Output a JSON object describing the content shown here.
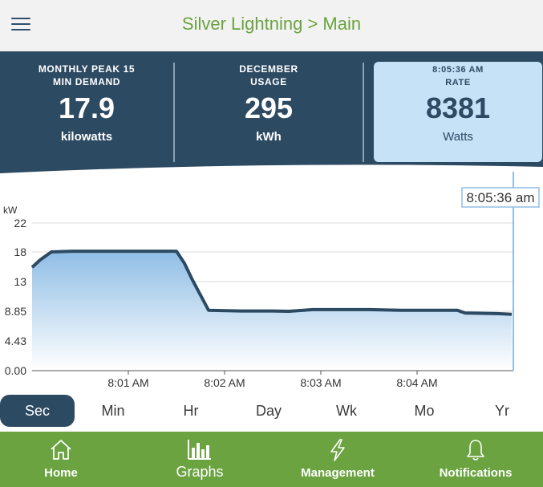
{
  "header": {
    "title": "Silver Lightning > Main"
  },
  "stats": [
    {
      "label_line1": "MONTHLY PEAK 15",
      "label_line2": "MIN DEMAND",
      "value": "17.9",
      "unit": "kilowatts"
    },
    {
      "label_line1": "DECEMBER",
      "label_line2": "USAGE",
      "value": "295",
      "unit": "kWh"
    },
    {
      "label_line1": "8:05:36 AM",
      "label_line2": "RATE",
      "value": "8381",
      "unit": "Watts"
    }
  ],
  "chart_data": {
    "type": "area",
    "ylabel": "kW",
    "y_ticks": [
      "22",
      "18",
      "13",
      "8.85",
      "4.43",
      "0.00"
    ],
    "y_tick_values": [
      22,
      17.7,
      13.3,
      8.85,
      4.43,
      0
    ],
    "ylim": [
      0,
      22
    ],
    "x_ticks": [
      "8:01 AM",
      "8:02 AM",
      "8:03 AM",
      "8:04 AM"
    ],
    "x_tick_seconds": [
      60,
      120,
      180,
      240
    ],
    "xlim_seconds": [
      0,
      300
    ],
    "cursor_label": "8:05:36 am",
    "grid": true,
    "series": [
      {
        "x_seconds": [
          0,
          5,
          12,
          25,
          50,
          75,
          90,
          95,
          100,
          110,
          130,
          150,
          160,
          175,
          200,
          210,
          230,
          250,
          265,
          270,
          290,
          299
        ],
        "values": [
          15.4,
          16.5,
          17.7,
          17.8,
          17.8,
          17.8,
          17.8,
          16.0,
          13.5,
          9.0,
          8.9,
          8.9,
          8.85,
          9.1,
          9.1,
          9.1,
          9.0,
          9.0,
          9.0,
          8.6,
          8.5,
          8.4
        ]
      }
    ],
    "colors": {
      "line": "#2d4a63",
      "fill_top": "#8fbde5",
      "fill_bottom": "#ffffff",
      "cursor": "#8fbde5"
    }
  },
  "time_tabs": [
    "Sec",
    "Min",
    "Hr",
    "Day",
    "Wk",
    "Mo",
    "Yr"
  ],
  "active_time_tab": "Sec",
  "nav": [
    {
      "label": "Home",
      "icon": "home-icon"
    },
    {
      "label": "Graphs",
      "icon": "graph-icon"
    },
    {
      "label": "Management",
      "icon": "lightning-icon"
    },
    {
      "label": "Notifications",
      "icon": "bell-icon"
    }
  ],
  "colors": {
    "brand_green": "#6aa33f",
    "dark_blue": "#2d4a63",
    "light_blue": "#c6e2f7"
  }
}
